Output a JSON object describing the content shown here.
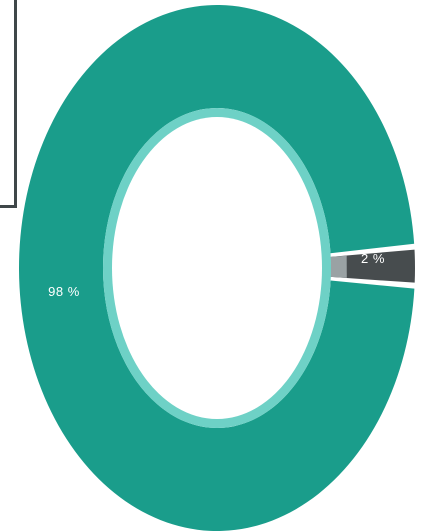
{
  "chart_data": {
    "type": "pie",
    "variant": "donut",
    "slices": [
      {
        "label": "98 %",
        "value": 98,
        "color": "#1a9d8b"
      },
      {
        "label": "2 %",
        "value": 2,
        "color": "#474c4e"
      }
    ],
    "inner_ring_color": "#6ed1c6",
    "background": "#ffffff"
  }
}
